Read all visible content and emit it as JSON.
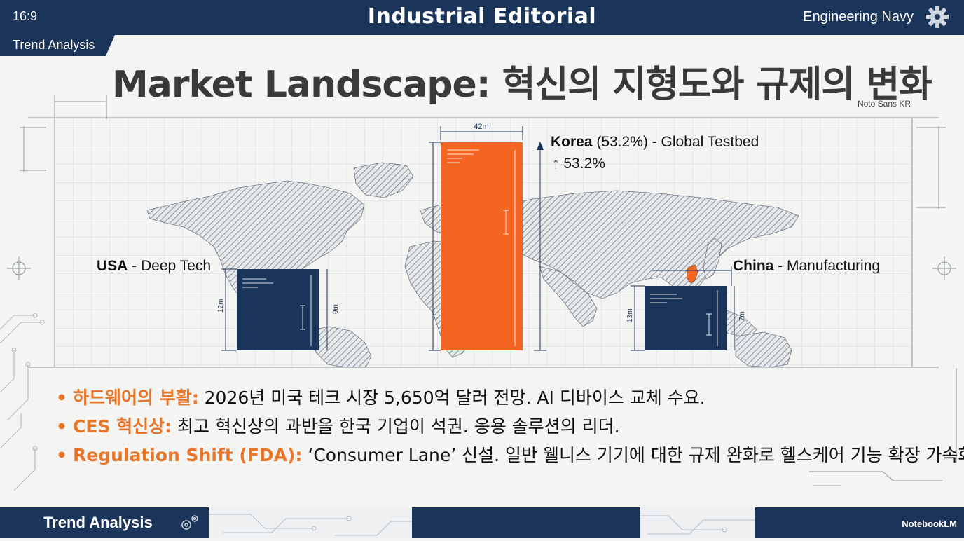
{
  "header": {
    "ratio": "16:9",
    "title": "Industrial Editorial",
    "theme": "Engineering Navy",
    "tab": "Trend Analysis"
  },
  "heading": "Market Landscape: 혁신의 지형도와 규제의 변화",
  "font_note": "Noto Sans KR",
  "markets": {
    "usa": {
      "name": "USA",
      "tag": " - Deep Tech"
    },
    "korea": {
      "name": "Korea",
      "tag": " (53.2%) - Global Testbed",
      "growth": "↑ 53.2%"
    },
    "china": {
      "name": "China",
      "tag": " - Manufacturing"
    }
  },
  "dimensions": {
    "korea_width": "42m",
    "usa_height": "12m",
    "usa_inner": "9m",
    "china_height": "13m",
    "china_inner": "7m"
  },
  "bullets": [
    {
      "key": "하드웨어의 부활:",
      "text": " 2026년 미국 테크 시장 5,650억 달러 전망. AI 디바이스 교체 수요."
    },
    {
      "key": "CES 혁신상:",
      "text": " 최고 혁신상의 과반을 한국 기업이 석권. 응용 솔루션의 리더."
    },
    {
      "key": "Regulation Shift (FDA):",
      "text": " ‘Consumer Lane’ 신설. 일반 웰니스 기기에 대한 규제 완화로 헬스케어 기능 확장 가속화."
    }
  ],
  "footer": {
    "label": "Trend Analysis",
    "brand": "NotebookLM"
  },
  "colors": {
    "navy": "#1b3459",
    "orange": "#f46524",
    "accent_text": "#e8762a"
  }
}
